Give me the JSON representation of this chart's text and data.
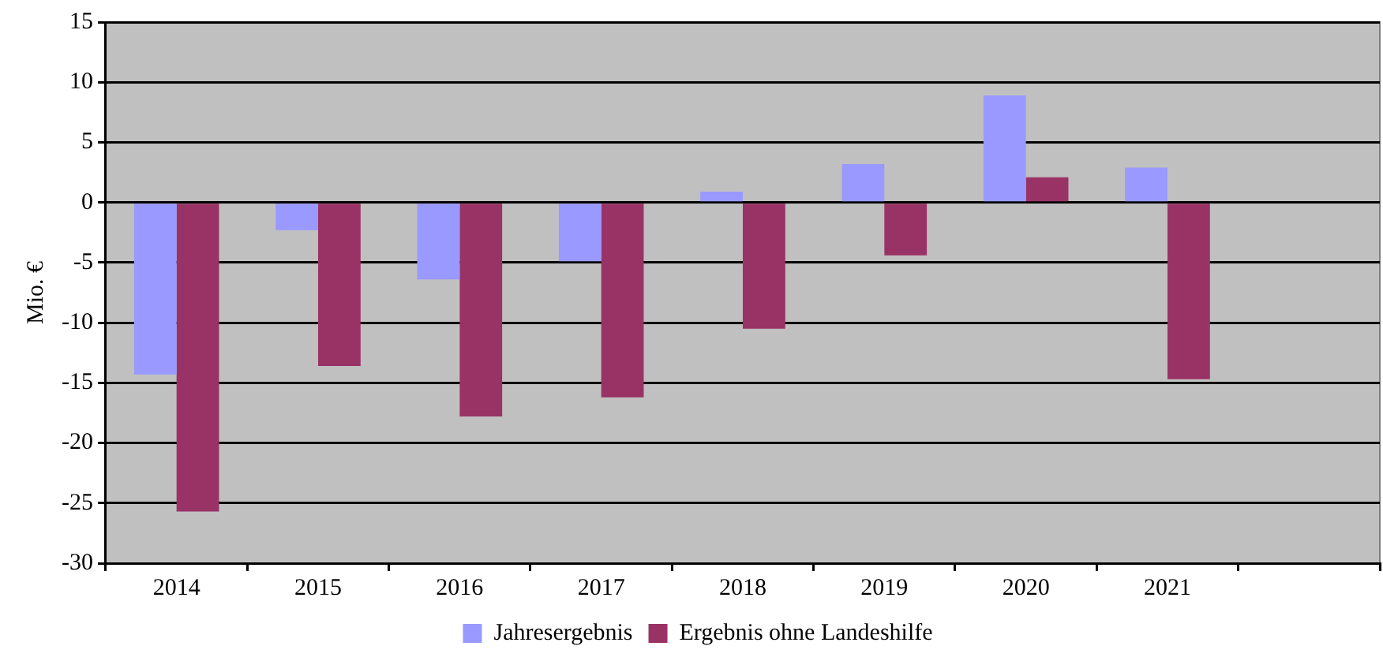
{
  "chart_data": {
    "type": "bar",
    "ylabel": "Mio. €",
    "categories": [
      "2014",
      "2015",
      "2016",
      "2017",
      "2018",
      "2019",
      "2020",
      "2021",
      null
    ],
    "series": [
      {
        "name": "Jahresergebnis",
        "color": "#9999ff",
        "values": [
          -14.3,
          -2.3,
          -6.4,
          -4.9,
          0.9,
          3.2,
          8.9,
          2.9,
          null
        ]
      },
      {
        "name": "Ergebnis ohne Landeshilfe",
        "color": "#993366",
        "values": [
          -25.7,
          -13.6,
          -17.8,
          -16.2,
          -10.5,
          -4.4,
          2.1,
          -14.7,
          null
        ]
      }
    ],
    "ylim": [
      -30,
      15
    ],
    "yticks": [
      -30,
      -25,
      -20,
      -15,
      -10,
      -5,
      0,
      5,
      10,
      15
    ],
    "grid": "y",
    "legend": "bottom"
  }
}
